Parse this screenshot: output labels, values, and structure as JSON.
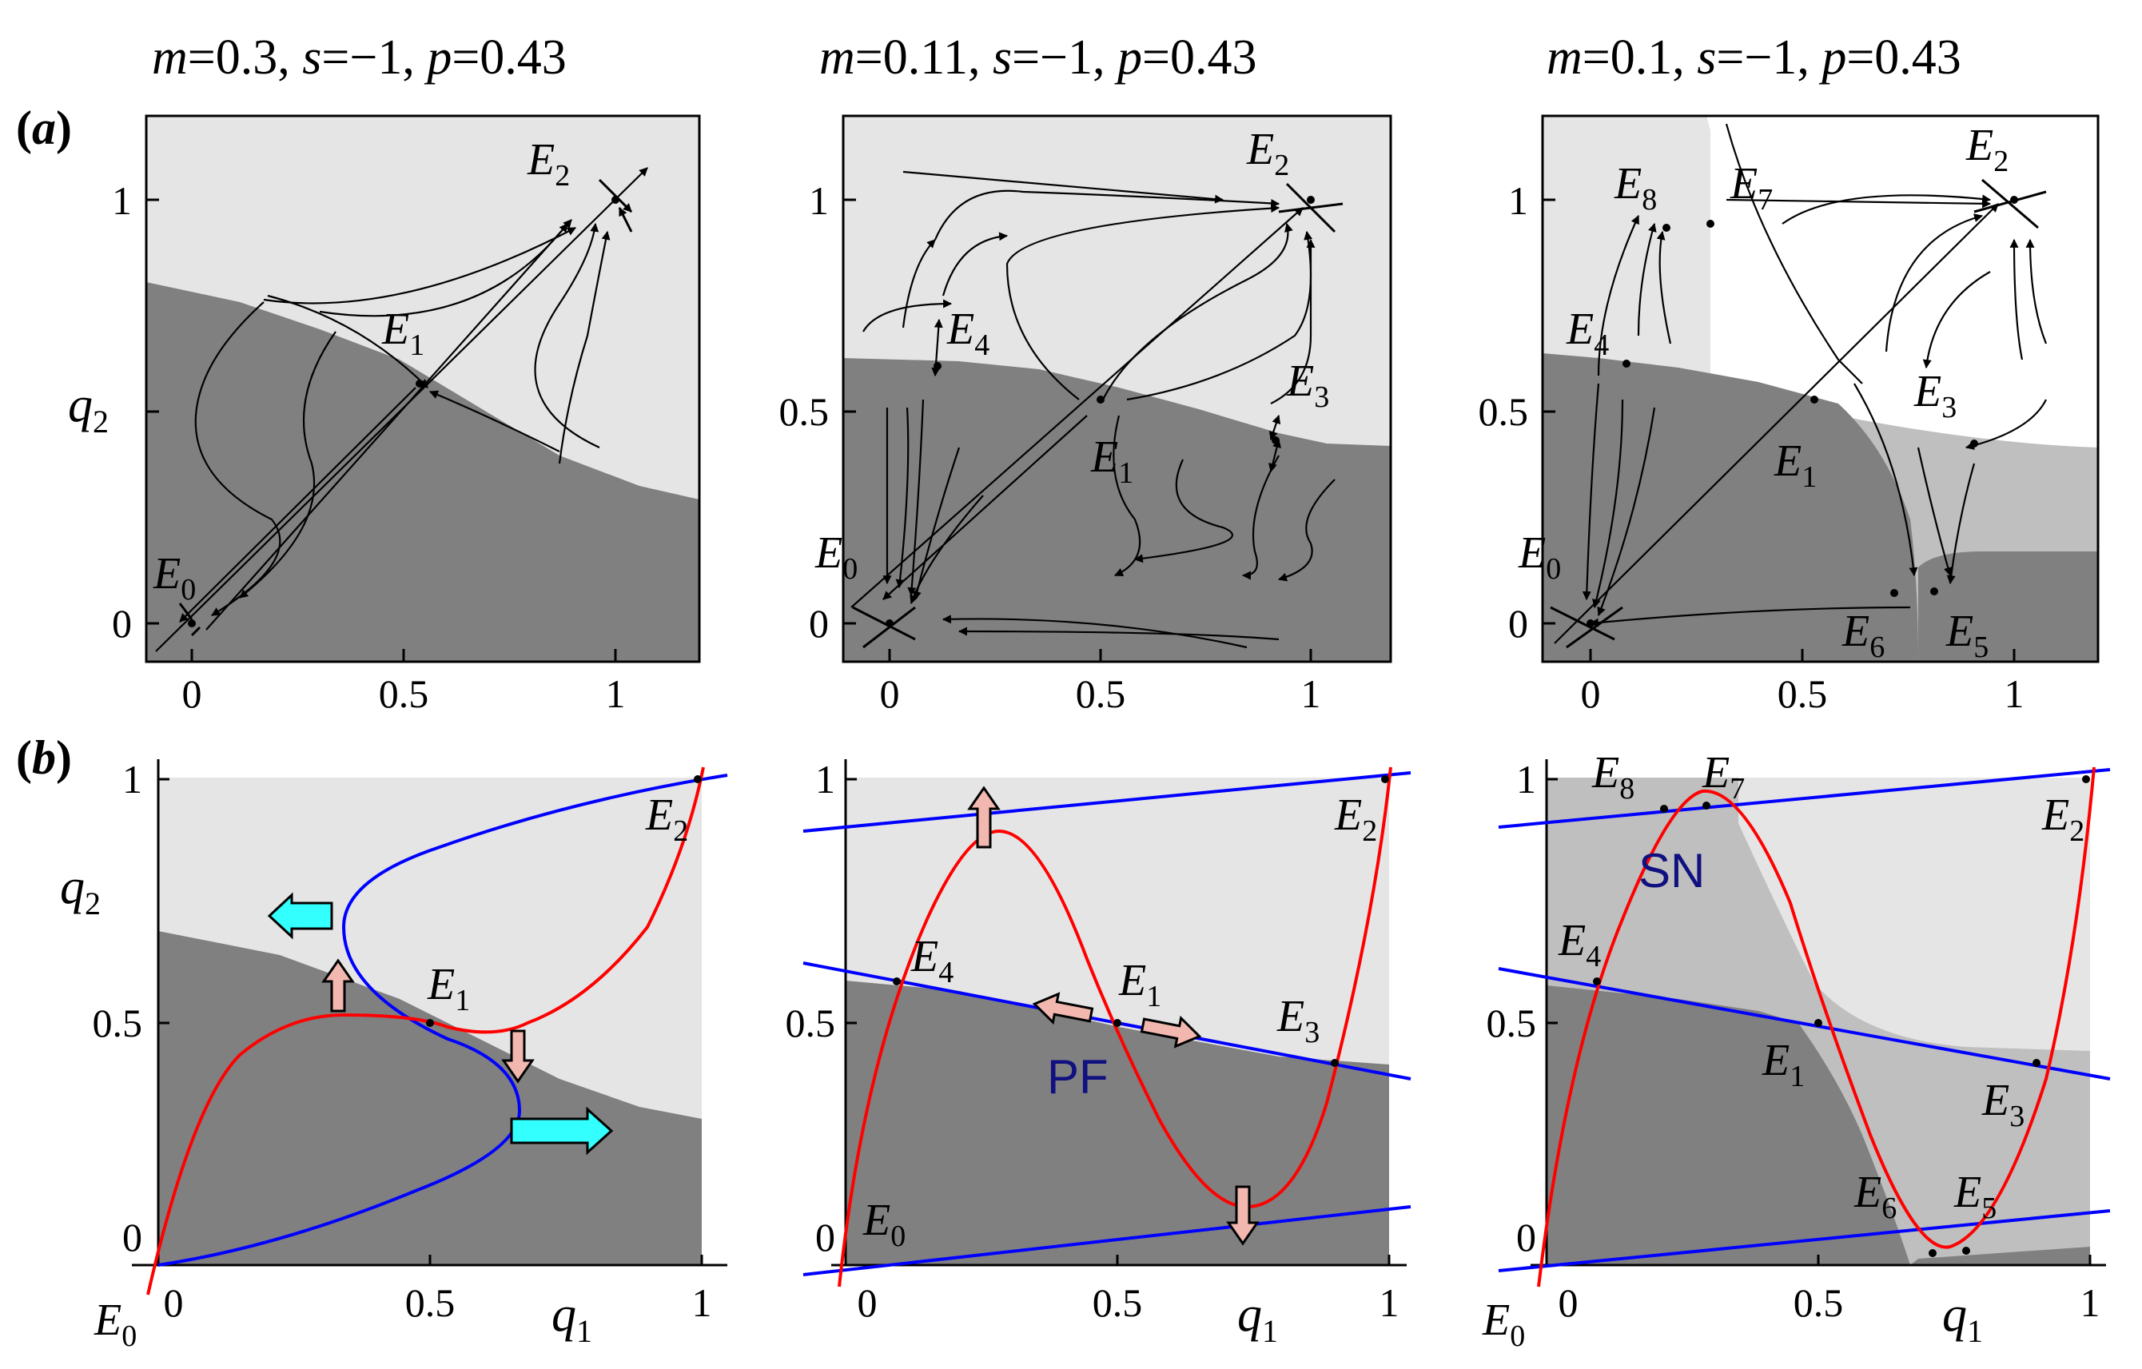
{
  "figure": {
    "row_labels": {
      "a": "a",
      "b": "b"
    },
    "panels": [
      {
        "title": {
          "m": "m",
          "m_val": "=0.3, ",
          "s": "s",
          "s_val": "=−1, ",
          "p": "p",
          "p_val": "=0.43"
        },
        "a": {
          "x_ticks": [
            "0",
            "0.5",
            "1"
          ],
          "y_ticks": [
            "0",
            "0.5",
            "1"
          ],
          "ylabel": "q",
          "ylabel_sub": "2",
          "points": [
            {
              "name": "E",
              "sub": "0"
            },
            {
              "name": "E",
              "sub": "1"
            },
            {
              "name": "E",
              "sub": "2"
            }
          ]
        },
        "b": {
          "x_ticks": [
            "0",
            "0.5",
            "1"
          ],
          "y_ticks": [
            "0",
            "0.5",
            "1"
          ],
          "xlabel": "q",
          "xlabel_sub": "1",
          "ylabel": "q",
          "ylabel_sub": "2",
          "points": [
            {
              "name": "E",
              "sub": "0"
            },
            {
              "name": "E",
              "sub": "1"
            },
            {
              "name": "E",
              "sub": "2"
            }
          ]
        }
      },
      {
        "title": {
          "m": "m",
          "m_val": "=0.11, ",
          "s": "s",
          "s_val": "=−1, ",
          "p": "p",
          "p_val": "=0.43"
        },
        "a": {
          "x_ticks": [
            "0",
            "0.5",
            "1"
          ],
          "y_ticks": [
            "0",
            "0.5",
            "1"
          ],
          "points": [
            {
              "name": "E",
              "sub": "0"
            },
            {
              "name": "E",
              "sub": "1"
            },
            {
              "name": "E",
              "sub": "2"
            },
            {
              "name": "E",
              "sub": "3"
            },
            {
              "name": "E",
              "sub": "4"
            }
          ]
        },
        "b": {
          "x_ticks": [
            "0",
            "0.5",
            "1"
          ],
          "y_ticks": [
            "0",
            "0.5",
            "1"
          ],
          "xlabel": "q",
          "xlabel_sub": "1",
          "bifurcation_label": "PF",
          "points": [
            {
              "name": "E",
              "sub": "0"
            },
            {
              "name": "E",
              "sub": "1"
            },
            {
              "name": "E",
              "sub": "2"
            },
            {
              "name": "E",
              "sub": "3"
            },
            {
              "name": "E",
              "sub": "4"
            }
          ]
        }
      },
      {
        "title": {
          "m": "m",
          "m_val": "=0.1, ",
          "s": "s",
          "s_val": "=−1, ",
          "p": "p",
          "p_val": "=0.43"
        },
        "a": {
          "x_ticks": [
            "0",
            "0.5",
            "1"
          ],
          "y_ticks": [
            "0",
            "0.5",
            "1"
          ],
          "points": [
            {
              "name": "E",
              "sub": "0"
            },
            {
              "name": "E",
              "sub": "1"
            },
            {
              "name": "E",
              "sub": "2"
            },
            {
              "name": "E",
              "sub": "3"
            },
            {
              "name": "E",
              "sub": "4"
            },
            {
              "name": "E",
              "sub": "5"
            },
            {
              "name": "E",
              "sub": "6"
            },
            {
              "name": "E",
              "sub": "7"
            },
            {
              "name": "E",
              "sub": "8"
            }
          ]
        },
        "b": {
          "x_ticks": [
            "0",
            "0.5",
            "1"
          ],
          "y_ticks": [
            "0",
            "0.5",
            "1"
          ],
          "xlabel": "q",
          "xlabel_sub": "1",
          "bifurcation_label": "SN",
          "points": [
            {
              "name": "E",
              "sub": "0"
            },
            {
              "name": "E",
              "sub": "1"
            },
            {
              "name": "E",
              "sub": "2"
            },
            {
              "name": "E",
              "sub": "3"
            },
            {
              "name": "E",
              "sub": "4"
            },
            {
              "name": "E",
              "sub": "5"
            },
            {
              "name": "E",
              "sub": "6"
            },
            {
              "name": "E",
              "sub": "7"
            },
            {
              "name": "E",
              "sub": "8"
            }
          ]
        }
      }
    ],
    "colors": {
      "light_region": "#e5e5e5",
      "dark_region": "#808080",
      "mid_region": "#bfbfbf",
      "red_nullcline": "#ff0000",
      "blue_nullcline": "#0000ff",
      "pink_arrow": "#f2b8b0",
      "cyan_arrow": "#33ffff",
      "label_navy": "#101080"
    }
  }
}
